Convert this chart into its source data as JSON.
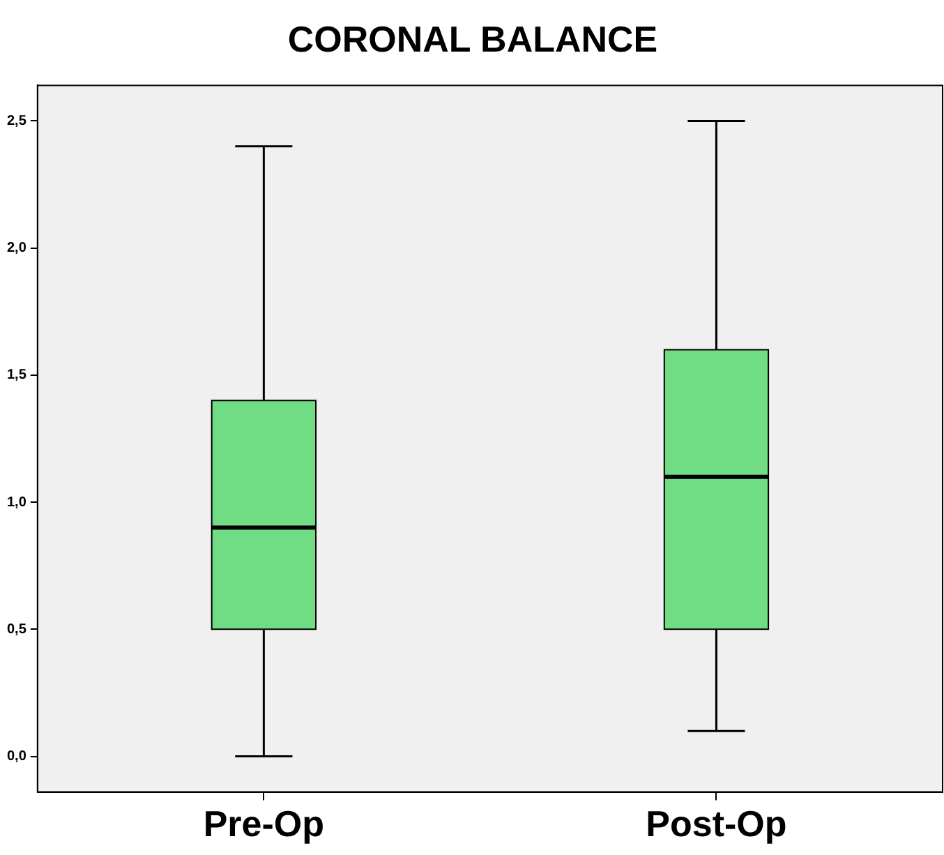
{
  "chart_data": {
    "type": "box",
    "title": "CORONAL BALANCE",
    "categories": [
      "Pre-Op",
      "Post-Op"
    ],
    "series": [
      {
        "color": "#70dc84",
        "boxes": [
          {
            "low": 0,
            "q1": 0.5,
            "median": 0.9,
            "q3": 1.4,
            "high": 2.4
          },
          {
            "low": 0.1,
            "q1": 0.5,
            "median": 1.1,
            "q3": 1.6,
            "high": 2.5
          }
        ]
      }
    ],
    "ylim": [
      -0.14,
      2.64
    ],
    "yticks": [
      {
        "value": 0,
        "label": "0,0"
      },
      {
        "value": 0.5,
        "label": "0,5"
      },
      {
        "value": 1,
        "label": "1,0"
      },
      {
        "value": 1.5,
        "label": "1,5"
      },
      {
        "value": 2,
        "label": "2,0"
      },
      {
        "value": 2.5,
        "label": "2,5"
      }
    ],
    "grid": false,
    "legend": false
  }
}
